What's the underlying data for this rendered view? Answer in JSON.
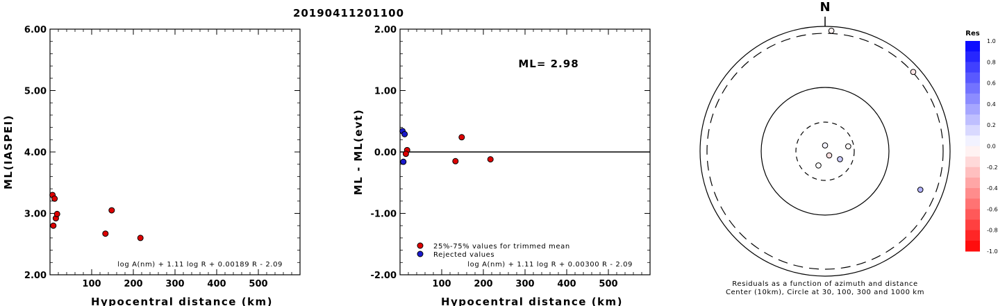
{
  "figure_title": "20190411201100",
  "chart_data": [
    {
      "type": "scatter",
      "title": "",
      "xlabel": "Hypocentral distance (km)",
      "ylabel": "ML(IASPEI)",
      "xlim": [
        0,
        600
      ],
      "ylim": [
        2.0,
        6.0
      ],
      "x_ticks": [
        "100",
        "200",
        "300",
        "400",
        "500"
      ],
      "y_ticks": [
        "2.00",
        "3.00",
        "4.00",
        "5.00",
        "6.00"
      ],
      "formula": "log A(nm) + 1.11 log R + 0.00189 R - 2.09",
      "series": [
        {
          "color": "#dd0000",
          "points": [
            {
              "x": 6,
              "y": 3.3
            },
            {
              "x": 11,
              "y": 3.24
            },
            {
              "x": 8,
              "y": 2.8
            },
            {
              "x": 14,
              "y": 2.92
            },
            {
              "x": 17,
              "y": 2.99
            },
            {
              "x": 133,
              "y": 2.67
            },
            {
              "x": 148,
              "y": 3.05
            },
            {
              "x": 217,
              "y": 2.6
            }
          ]
        }
      ]
    },
    {
      "type": "scatter",
      "title": "",
      "xlabel": "Hypocentral distance (km)",
      "ylabel": "ML - ML(evt)",
      "xlim": [
        0,
        600
      ],
      "ylim": [
        -2.0,
        2.0
      ],
      "x_ticks": [
        "100",
        "200",
        "300",
        "400",
        "500"
      ],
      "y_ticks": [
        "-2.00",
        "-1.00",
        "0.00",
        "1.00",
        "2.00"
      ],
      "annotation": "ML= 2.98",
      "formula": "log A(nm) + 1.11 log R + 0.00300 R - 2.09",
      "reference_line_y": 0.0,
      "series": [
        {
          "name": "25%-75% values for trimmed mean",
          "color": "#dd0000",
          "points": [
            {
              "x": 17,
              "y": 0.03
            },
            {
              "x": 14,
              "y": -0.03
            },
            {
              "x": 133,
              "y": -0.15
            },
            {
              "x": 148,
              "y": 0.24
            },
            {
              "x": 217,
              "y": -0.12
            }
          ]
        },
        {
          "name": "Rejected values",
          "color": "#1a1acc",
          "points": [
            {
              "x": 6,
              "y": 0.34
            },
            {
              "x": 11,
              "y": 0.29
            },
            {
              "x": 8,
              "y": -0.16
            }
          ]
        }
      ]
    },
    {
      "type": "scatter",
      "subtype": "polar",
      "north_label": "N",
      "caption_line1": "Residuals as a function of azimuth and distance",
      "caption_line2": "Center (10km), Circle at 30, 100, 300 and 1000 km",
      "rings_km": [
        30,
        100,
        300,
        1000
      ],
      "points": [
        {
          "azimuth_deg": 3,
          "distance_km": 480,
          "residual": -0.05
        },
        {
          "azimuth_deg": 48,
          "distance_km": 330,
          "residual": -0.1
        },
        {
          "azimuth_deg": 78,
          "distance_km": 22,
          "residual": -0.02
        },
        {
          "azimuth_deg": 0,
          "distance_km": 6,
          "residual": 0.05
        },
        {
          "azimuth_deg": 135,
          "distance_km": 6,
          "residual": -0.12
        },
        {
          "azimuth_deg": 118,
          "distance_km": 15,
          "residual": 0.2
        },
        {
          "azimuth_deg": 205,
          "distance_km": 14,
          "residual": 0.0
        },
        {
          "azimuth_deg": 112,
          "distance_km": 220,
          "residual": 0.3
        }
      ],
      "colorbar": {
        "title": "Res",
        "ticks": [
          "1.0",
          "0.8",
          "0.6",
          "0.4",
          "0.2",
          "0.0",
          "-0.2",
          "-0.4",
          "-0.6",
          "-0.8",
          "-1.0"
        ],
        "positive_color": "#0000ff",
        "negative_color": "#ff0000"
      }
    }
  ]
}
